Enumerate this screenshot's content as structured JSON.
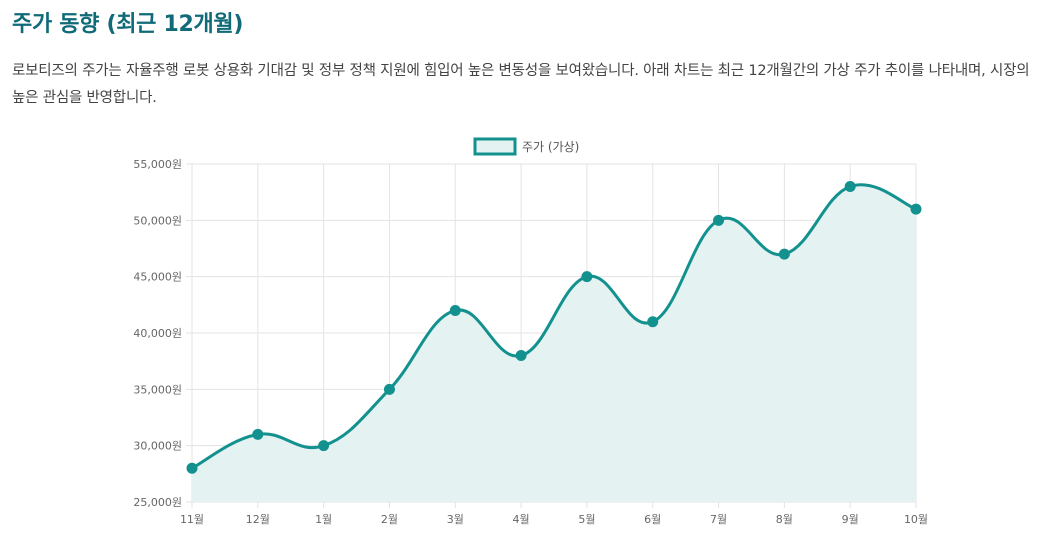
{
  "page": {
    "title": "주가 동향 (최근 12개월)",
    "description": "로보티즈의 주가는 자율주행 로봇 상용화 기대감 및 정부 정책 지원에 힘입어 높은 변동성을 보여왔습니다. 아래 차트는 최근 12개월간의 가상 주가 추이를 나타내며, 시장의 높은 관심을 반영합니다."
  },
  "chart_data": {
    "type": "area",
    "categories": [
      "11월",
      "12월",
      "1월",
      "2월",
      "3월",
      "4월",
      "5월",
      "6월",
      "7월",
      "8월",
      "9월",
      "10월"
    ],
    "series": [
      {
        "name": "주가 (가상)",
        "values": [
          28000,
          31000,
          30000,
          35000,
          42000,
          38000,
          45000,
          41000,
          50000,
          47000,
          53000,
          51000
        ]
      }
    ],
    "ylim": [
      25000,
      55000
    ],
    "y_ticks": [
      "25,000원",
      "30,000원",
      "35,000원",
      "40,000원",
      "45,000원",
      "50,000원",
      "55,000원"
    ],
    "y_tick_values": [
      25000,
      30000,
      35000,
      40000,
      45000,
      50000,
      55000
    ],
    "grid": true,
    "legend_position": "top-center",
    "colors": {
      "line": "#13918f",
      "fill": "#e4f3f2",
      "grid": "#e3e3e3"
    }
  }
}
